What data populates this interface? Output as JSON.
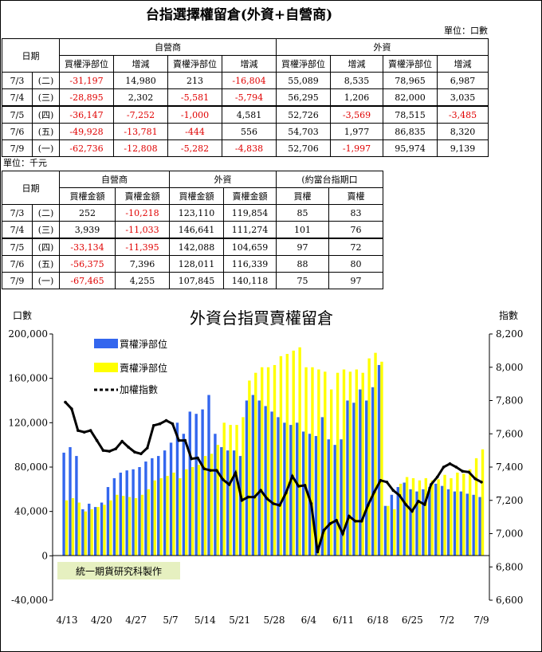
{
  "page_title": "台指選擇權留倉(外資+自營商)",
  "table1": {
    "unit": "單位：口數",
    "date_header": "日期",
    "group_headers": [
      "自營商",
      "外資"
    ],
    "sub_headers": [
      "買權淨部位",
      "增減",
      "賣權淨部位",
      "增減",
      "買權淨部位",
      "增減",
      "賣權淨部位",
      "增減"
    ],
    "rows": [
      {
        "date": "7/3",
        "weekday": "(二)",
        "values": [
          "-31,197",
          "14,980",
          "213",
          "-16,804",
          "55,089",
          "8,535",
          "78,965",
          "6,987"
        ]
      },
      {
        "date": "7/4",
        "weekday": "(三)",
        "values": [
          "-28,895",
          "2,302",
          "-5,581",
          "-5,794",
          "56,295",
          "1,206",
          "82,000",
          "3,035"
        ]
      },
      {
        "date": "7/5",
        "weekday": "(四)",
        "values": [
          "-36,147",
          "-7,252",
          "-1,000",
          "4,581",
          "52,726",
          "-3,569",
          "78,515",
          "-3,485"
        ]
      },
      {
        "date": "7/6",
        "weekday": "(五)",
        "values": [
          "-49,928",
          "-13,781",
          "-444",
          "556",
          "54,703",
          "1,977",
          "86,835",
          "8,320"
        ]
      },
      {
        "date": "7/9",
        "weekday": "(一)",
        "values": [
          "-62,736",
          "-12,808",
          "-5,282",
          "-4,838",
          "52,706",
          "-1,997",
          "95,974",
          "9,139"
        ]
      }
    ]
  },
  "table2": {
    "unit": "單位：千元",
    "date_header": "日期",
    "group_headers": [
      "自營商",
      "外資",
      "(約當台指期口"
    ],
    "sub_headers": [
      "買權金額",
      "賣權金額",
      "買權金額",
      "賣權金額",
      "買權",
      "賣權"
    ],
    "rows": [
      {
        "date": "7/3",
        "weekday": "(二)",
        "values": [
          "252",
          "-10,218",
          "123,110",
          "119,854",
          "85",
          "83"
        ]
      },
      {
        "date": "7/4",
        "weekday": "(三)",
        "values": [
          "3,939",
          "-11,033",
          "146,641",
          "111,274",
          "101",
          "76"
        ]
      },
      {
        "date": "7/5",
        "weekday": "(四)",
        "values": [
          "-33,134",
          "-11,395",
          "142,088",
          "104,659",
          "97",
          "72"
        ]
      },
      {
        "date": "7/6",
        "weekday": "(五)",
        "values": [
          "-56,375",
          "7,396",
          "128,011",
          "116,339",
          "88",
          "80"
        ]
      },
      {
        "date": "7/9",
        "weekday": "(一)",
        "values": [
          "-67,465",
          "4,255",
          "107,845",
          "140,118",
          "75",
          "97"
        ]
      }
    ]
  },
  "chart_data": {
    "type": "bar",
    "title": "外資台指買賣權留倉",
    "ylabel_left": "口數",
    "ylabel_right": "指數",
    "watermark": "統一期貨研究科製作",
    "ylim_left": [
      -40000,
      200000
    ],
    "yticks_left": [
      "-40,000",
      "0",
      "40,000",
      "80,000",
      "120,000",
      "160,000",
      "200,000"
    ],
    "ylim_right": [
      6600,
      8200
    ],
    "yticks_right": [
      "6,600",
      "6,800",
      "7,000",
      "7,200",
      "7,400",
      "7,600",
      "7,800",
      "8,000",
      "8,200"
    ],
    "xticks": [
      "4/13",
      "4/20",
      "4/27",
      "5/7",
      "5/14",
      "5/21",
      "5/28",
      "6/4",
      "6/11",
      "6/18",
      "6/25",
      "7/2",
      "7/9"
    ],
    "legend_position": "top-left",
    "colors": {
      "call": "#3366ee",
      "put": "#ffff00",
      "index": "#000000"
    },
    "series": [
      {
        "name": "買權淨部位",
        "kind": "bar",
        "values": [
          93000,
          98000,
          90000,
          42000,
          47000,
          44000,
          48000,
          62000,
          70000,
          75000,
          77000,
          78000,
          80000,
          85000,
          88000,
          90000,
          95000,
          102000,
          120000,
          110000,
          130000,
          128000,
          132000,
          145000,
          110000,
          98000,
          95000,
          95000,
          90000,
          140000,
          145000,
          140000,
          135000,
          130000,
          125000,
          120000,
          118000,
          120000,
          112000,
          110000,
          108000,
          125000,
          105000,
          100000,
          105000,
          140000,
          138000,
          150000,
          140000,
          152000,
          172000,
          45000,
          55000,
          62000,
          66000,
          60000,
          58000,
          60000,
          62000,
          65000,
          63000,
          60000,
          58000,
          58000,
          56000,
          55000,
          53000
        ]
      },
      {
        "name": "賣權淨部位",
        "kind": "bar",
        "values": [
          50000,
          52000,
          48000,
          40000,
          42000,
          44000,
          46000,
          50000,
          55000,
          54000,
          53000,
          52000,
          55000,
          60000,
          68000,
          70000,
          72000,
          75000,
          70000,
          78000,
          80000,
          82000,
          90000,
          92000,
          100000,
          120000,
          118000,
          118000,
          125000,
          158000,
          165000,
          170000,
          170000,
          172000,
          180000,
          182000,
          185000,
          188000,
          170000,
          170000,
          168000,
          166000,
          150000,
          165000,
          168000,
          166000,
          168000,
          165000,
          178000,
          183000,
          175000,
          45000,
          42000,
          65000,
          71000,
          70000,
          68000,
          70000,
          68000,
          69000,
          73000,
          70000,
          75000,
          74000,
          78000,
          88000,
          96000
        ]
      },
      {
        "name": "加權指數",
        "kind": "line",
        "values": [
          7790,
          7750,
          7620,
          7610,
          7620,
          7560,
          7500,
          7495,
          7510,
          7555,
          7520,
          7490,
          7480,
          7515,
          7650,
          7660,
          7680,
          7660,
          7560,
          7560,
          7450,
          7455,
          7390,
          7380,
          7380,
          7325,
          7295,
          7365,
          7200,
          7220,
          7220,
          7260,
          7210,
          7180,
          7170,
          7245,
          7345,
          7285,
          7290,
          7180,
          6890,
          7020,
          7060,
          7080,
          7000,
          7105,
          7075,
          7075,
          7170,
          7250,
          7320,
          7310,
          7260,
          7230,
          7175,
          7135,
          7195,
          7175,
          7295,
          7340,
          7400,
          7420,
          7400,
          7375,
          7370,
          7330,
          7310
        ]
      }
    ]
  }
}
